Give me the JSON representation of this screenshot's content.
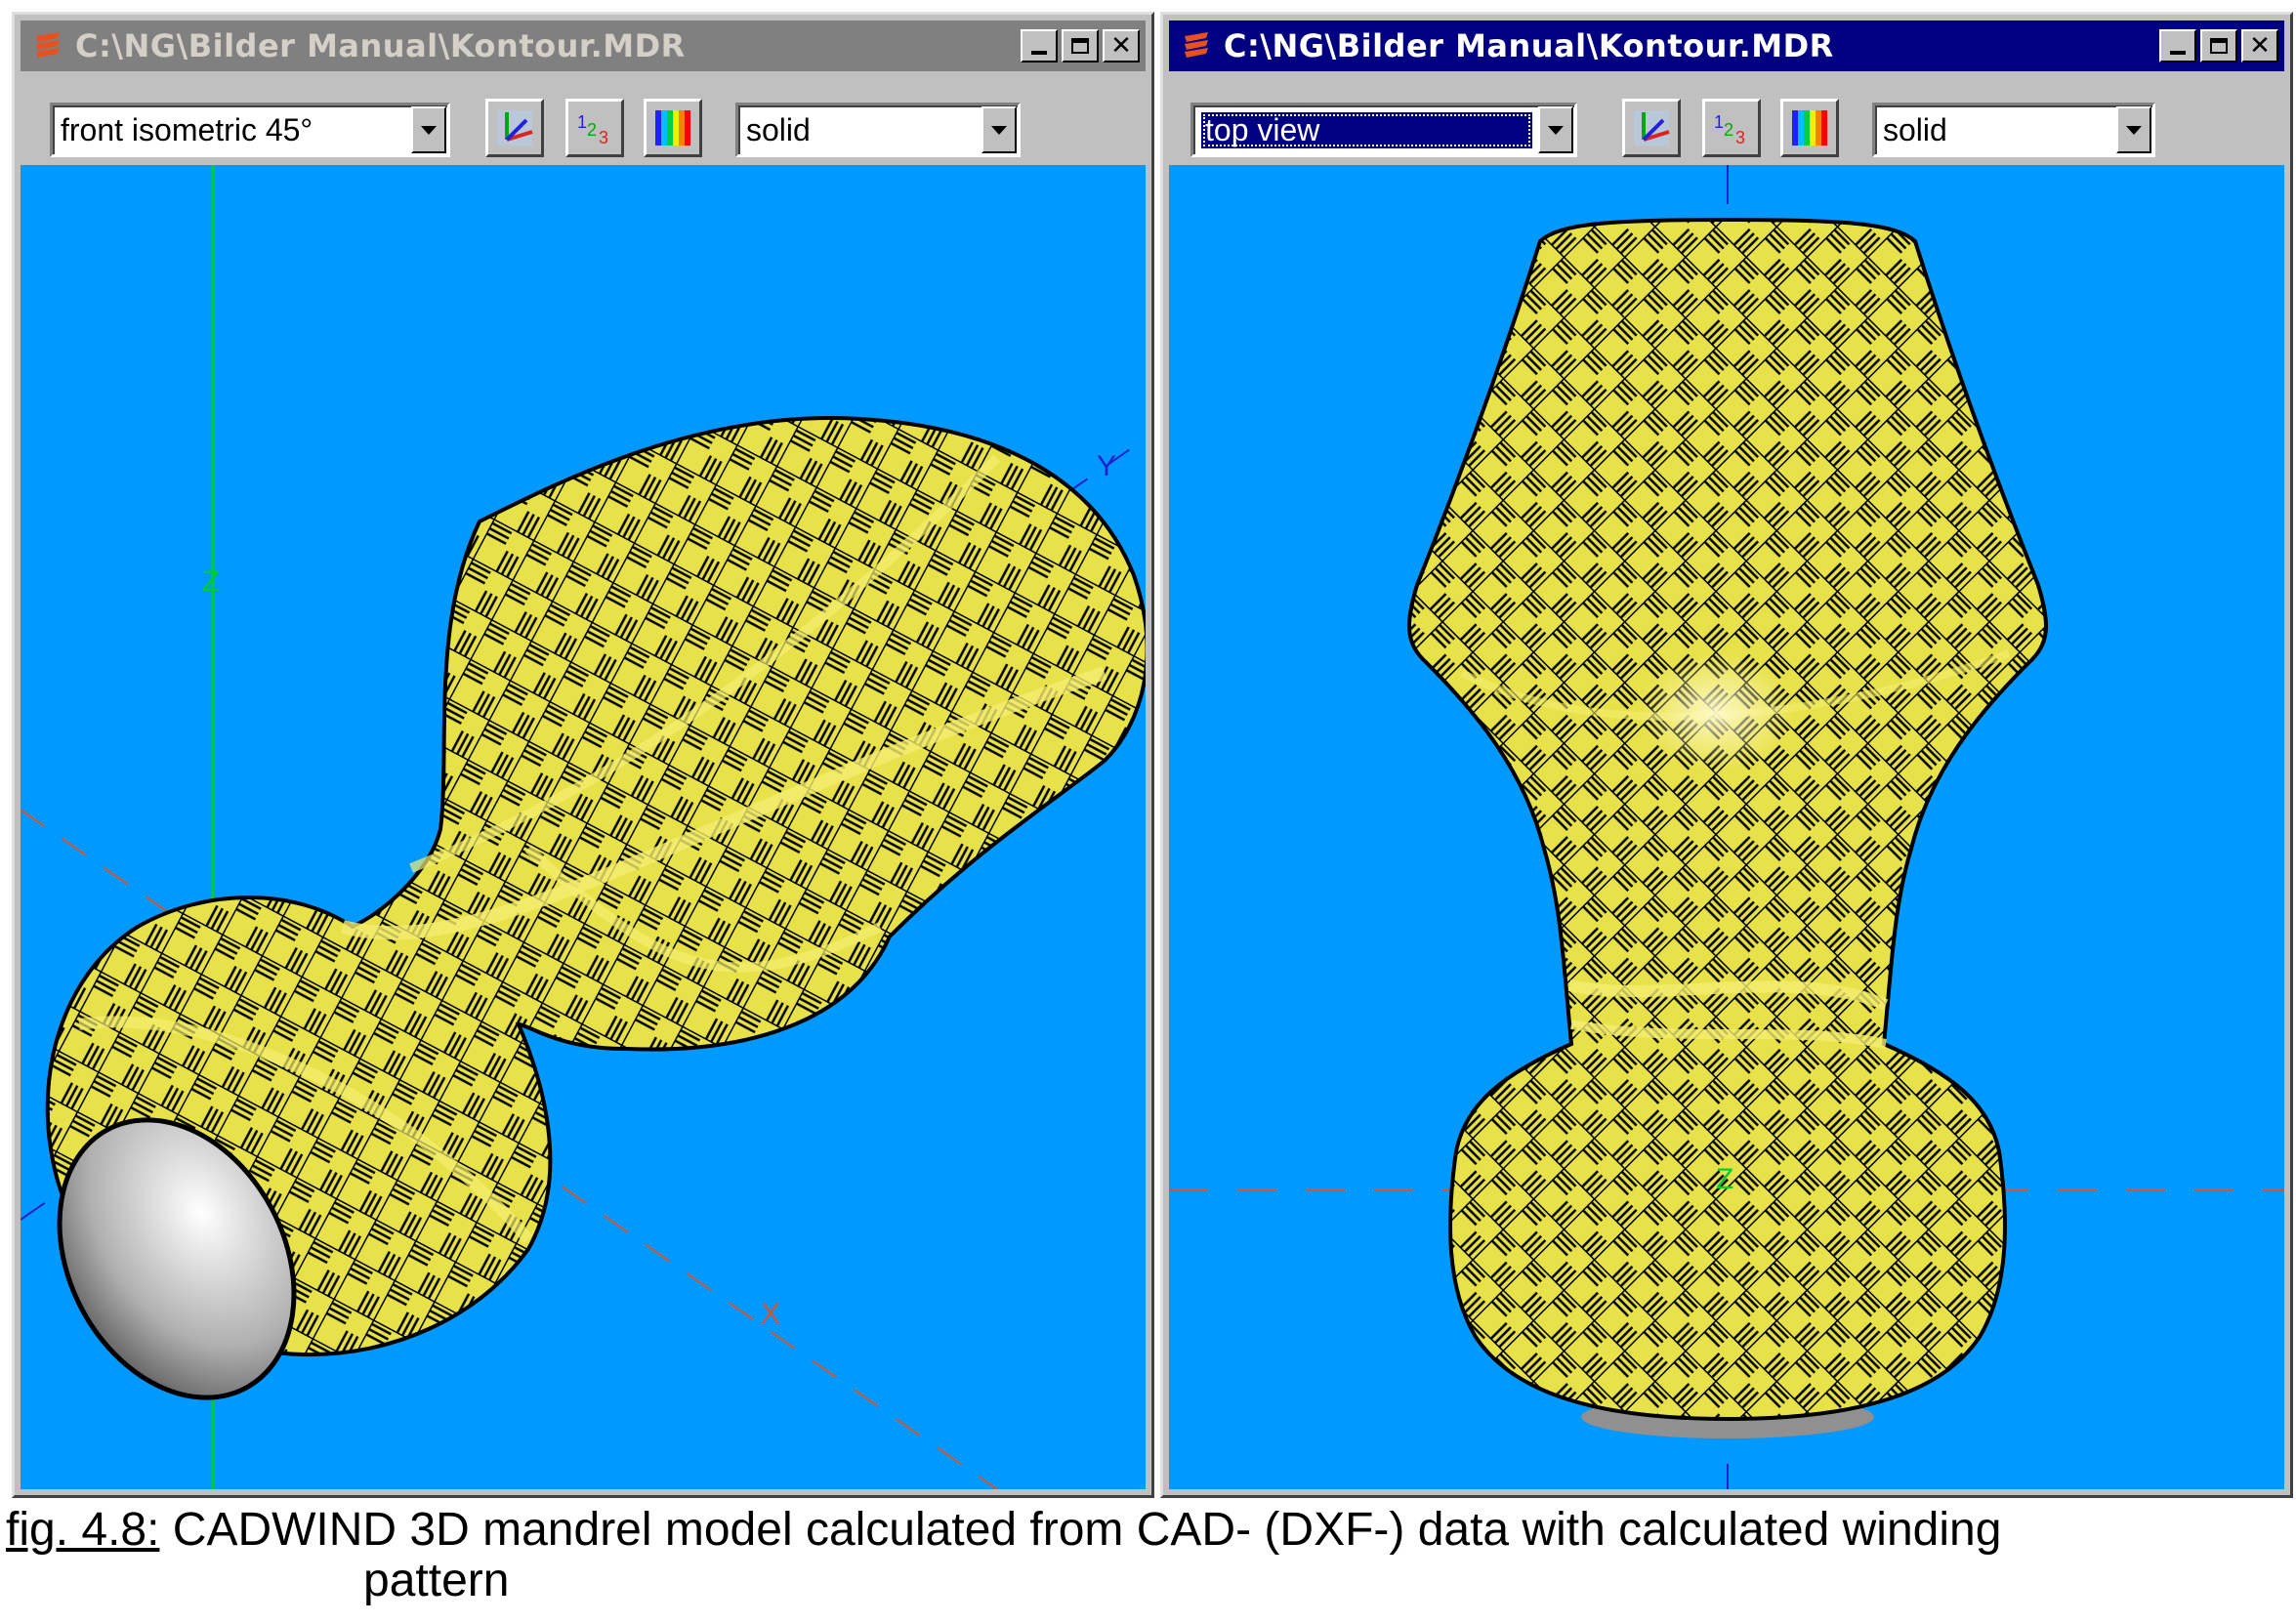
{
  "windows": [
    {
      "title": "C:\\NG\\Bilder Manual\\Kontour.MDR",
      "view_option": "front isometric 45°",
      "render_option": "solid",
      "axis_labels": [
        "Z",
        "Y",
        "X"
      ]
    },
    {
      "title": "C:\\NG\\Bilder Manual\\Kontour.MDR",
      "view_option": "top view",
      "render_option": "solid",
      "axis_labels": [
        "Z"
      ]
    }
  ],
  "toolbar": {
    "numbers_icon_text": "123"
  },
  "caption": {
    "figure_label": "fig. 4.8:",
    "text_line1": " CADWIND 3D mandrel model calculated from CAD- (DXF-) data with calculated winding",
    "text_line2": "pattern"
  },
  "colors": {
    "viewport_background": "#0099ff",
    "mandrel_fill": "#e8e24a",
    "pattern_line": "#000000",
    "axis_z": "#00cc33",
    "axis_y": "#2222cc",
    "axis_x": "#cc5533",
    "active_title": "#000080",
    "inactive_title": "#808080"
  }
}
